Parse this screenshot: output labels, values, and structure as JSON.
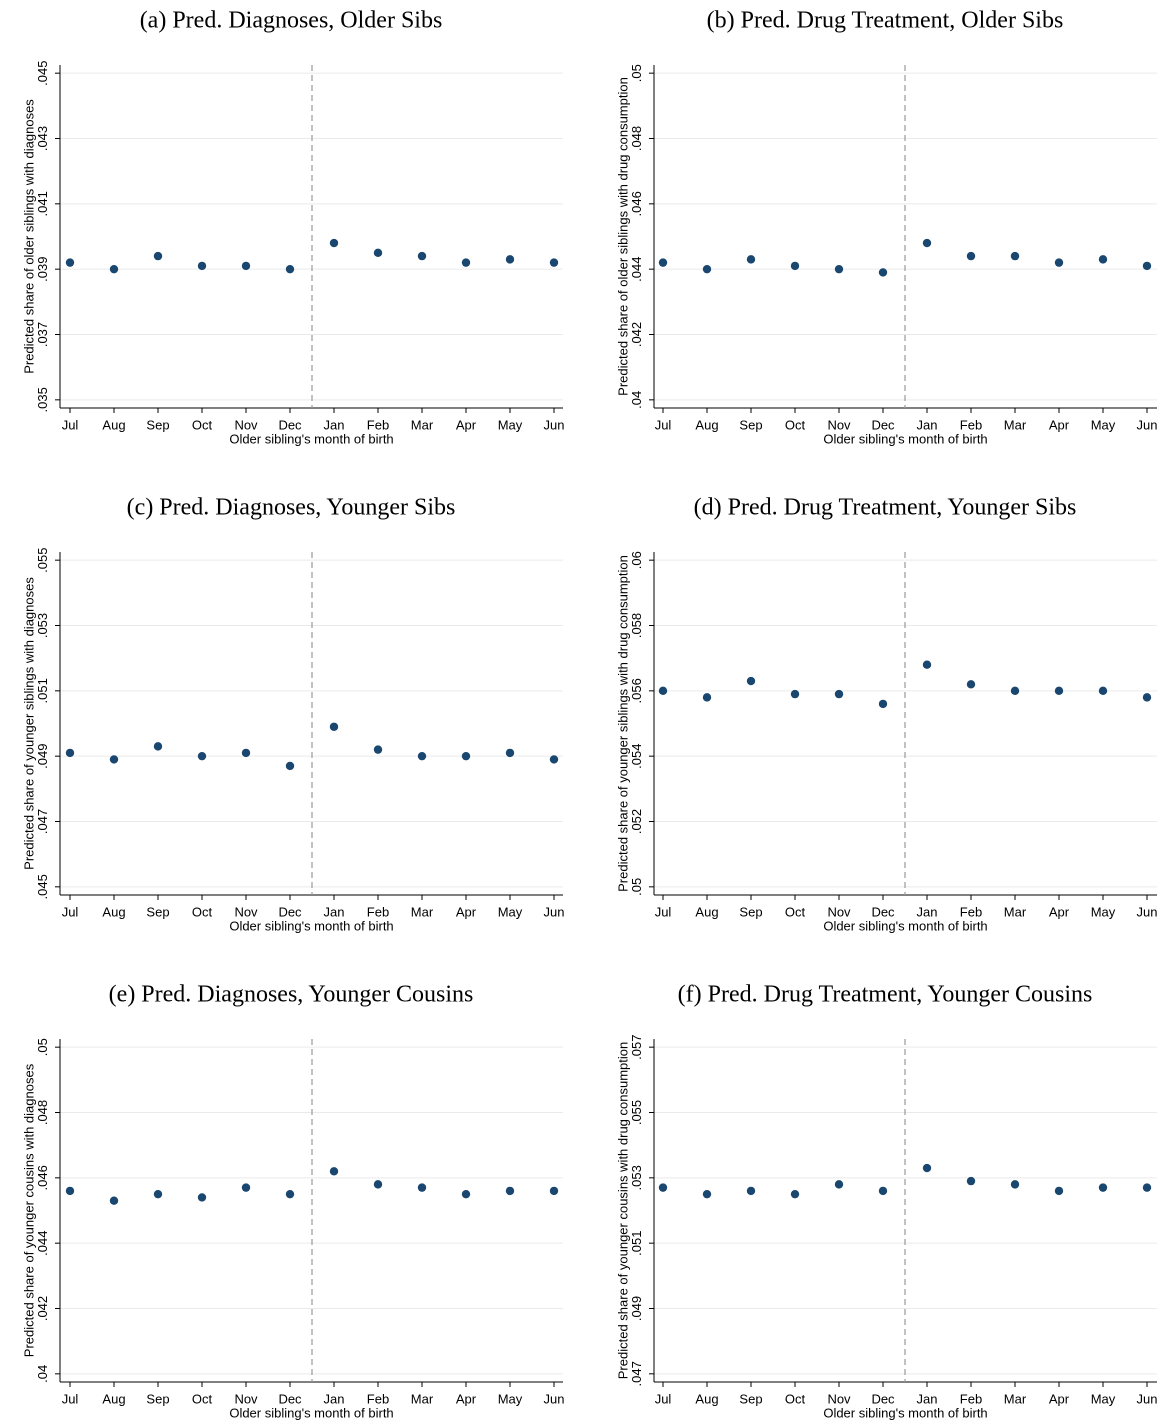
{
  "chart_data": [
    {
      "type": "scatter",
      "title": "(a) Pred. Diagnoses, Older Sibs",
      "x_label": "Older sibling's month of birth",
      "y_label": "Predicted share of older siblings with diagnoses",
      "categories": [
        "Jul",
        "Aug",
        "Sep",
        "Oct",
        "Nov",
        "Dec",
        "Jan",
        "Feb",
        "Mar",
        "Apr",
        "May",
        "Jun"
      ],
      "values": [
        0.0392,
        0.039,
        0.0394,
        0.0391,
        0.0391,
        0.039,
        0.0398,
        0.0395,
        0.0394,
        0.0392,
        0.0393,
        0.0392
      ],
      "color": "#1a476f",
      "grid": true,
      "ylim": [
        0.03475,
        0.04525
      ],
      "yticks": [
        {
          "value": 0.035,
          "label": ".035"
        },
        {
          "value": 0.037,
          "label": ".037"
        },
        {
          "value": 0.039,
          "label": ".039"
        },
        {
          "value": 0.041,
          "label": ".041"
        },
        {
          "value": 0.043,
          "label": ".043"
        },
        {
          "value": 0.045,
          "label": ".045"
        }
      ]
    },
    {
      "type": "scatter",
      "title": "(b) Pred. Drug Treatment, Older Sibs",
      "x_label": "Older sibling's month of birth",
      "y_label": "Predicted share of older siblings with drug consumption",
      "categories": [
        "Jul",
        "Aug",
        "Sep",
        "Oct",
        "Nov",
        "Dec",
        "Jan",
        "Feb",
        "Mar",
        "Apr",
        "May",
        "Jun"
      ],
      "values": [
        0.0442,
        0.044,
        0.0443,
        0.0441,
        0.044,
        0.0439,
        0.0448,
        0.0444,
        0.0444,
        0.0442,
        0.0443,
        0.0441
      ],
      "color": "#1a476f",
      "grid": true,
      "ylim": [
        0.03975,
        0.05025
      ],
      "yticks": [
        {
          "value": 0.04,
          "label": ".04"
        },
        {
          "value": 0.042,
          "label": ".042"
        },
        {
          "value": 0.044,
          "label": ".044"
        },
        {
          "value": 0.046,
          "label": ".046"
        },
        {
          "value": 0.048,
          "label": ".048"
        },
        {
          "value": 0.05,
          "label": ".05"
        }
      ]
    },
    {
      "type": "scatter",
      "title": "(c) Pred. Diagnoses, Younger Sibs",
      "x_label": "Older sibling's month of birth",
      "y_label": "Predicted share of younger siblings with diagnoses",
      "categories": [
        "Jul",
        "Aug",
        "Sep",
        "Oct",
        "Nov",
        "Dec",
        "Jan",
        "Feb",
        "Mar",
        "Apr",
        "May",
        "Jun"
      ],
      "values": [
        0.0491,
        0.0489,
        0.0493,
        0.049,
        0.0491,
        0.0487,
        0.0499,
        0.0492,
        0.049,
        0.049,
        0.0491,
        0.0489
      ],
      "color": "#1a476f",
      "grid": true,
      "ylim": [
        0.04475,
        0.05525
      ],
      "yticks": [
        {
          "value": 0.045,
          "label": ".045"
        },
        {
          "value": 0.047,
          "label": ".047"
        },
        {
          "value": 0.049,
          "label": ".049"
        },
        {
          "value": 0.051,
          "label": ".051"
        },
        {
          "value": 0.053,
          "label": ".053"
        },
        {
          "value": 0.055,
          "label": ".055"
        }
      ]
    },
    {
      "type": "scatter",
      "title": "(d) Pred. Drug Treatment, Younger Sibs",
      "x_label": "Older sibling's month of birth",
      "y_label": "Predicted share of younger siblings with drug consumption",
      "categories": [
        "Jul",
        "Aug",
        "Sep",
        "Oct",
        "Nov",
        "Dec",
        "Jan",
        "Feb",
        "Mar",
        "Apr",
        "May",
        "Jun"
      ],
      "values": [
        0.056,
        0.0558,
        0.0563,
        0.0559,
        0.0559,
        0.0556,
        0.0568,
        0.0562,
        0.056,
        0.056,
        0.056,
        0.0558
      ],
      "color": "#1a476f",
      "grid": true,
      "ylim": [
        0.04975,
        0.06025
      ],
      "yticks": [
        {
          "value": 0.05,
          "label": ".05"
        },
        {
          "value": 0.052,
          "label": ".052"
        },
        {
          "value": 0.054,
          "label": ".054"
        },
        {
          "value": 0.056,
          "label": ".056"
        },
        {
          "value": 0.058,
          "label": ".058"
        },
        {
          "value": 0.06,
          "label": ".06"
        }
      ]
    },
    {
      "type": "scatter",
      "title": "(e) Pred. Diagnoses, Younger Cousins",
      "x_label": "Older sibling's month of birth",
      "y_label": "Predicted share of younger cousins with diagnoses",
      "categories": [
        "Jul",
        "Aug",
        "Sep",
        "Oct",
        "Nov",
        "Dec",
        "Jan",
        "Feb",
        "Mar",
        "Apr",
        "May",
        "Jun"
      ],
      "values": [
        0.0456,
        0.0453,
        0.0455,
        0.0454,
        0.0457,
        0.0455,
        0.0462,
        0.0458,
        0.0457,
        0.0455,
        0.0456,
        0.0456
      ],
      "color": "#1a476f",
      "grid": true,
      "ylim": [
        0.03975,
        0.05025
      ],
      "yticks": [
        {
          "value": 0.04,
          "label": ".04"
        },
        {
          "value": 0.042,
          "label": ".042"
        },
        {
          "value": 0.044,
          "label": ".044"
        },
        {
          "value": 0.046,
          "label": ".046"
        },
        {
          "value": 0.048,
          "label": ".048"
        },
        {
          "value": 0.05,
          "label": ".05"
        }
      ]
    },
    {
      "type": "scatter",
      "title": "(f) Pred. Drug Treatment, Younger Cousins",
      "x_label": "Older sibling's month of birth",
      "y_label": "Predicted share of younger cousins with drug consumption",
      "categories": [
        "Jul",
        "Aug",
        "Sep",
        "Oct",
        "Nov",
        "Dec",
        "Jan",
        "Feb",
        "Mar",
        "Apr",
        "May",
        "Jun"
      ],
      "values": [
        0.0527,
        0.0525,
        0.0526,
        0.0525,
        0.0528,
        0.0526,
        0.0533,
        0.0529,
        0.0528,
        0.0526,
        0.0527,
        0.0527
      ],
      "color": "#1a476f",
      "grid": true,
      "ylim": [
        0.04675,
        0.05725
      ],
      "yticks": [
        {
          "value": 0.047,
          "label": ".047"
        },
        {
          "value": 0.049,
          "label": ".049"
        },
        {
          "value": 0.051,
          "label": ".051"
        },
        {
          "value": 0.053,
          "label": ".053"
        },
        {
          "value": 0.055,
          "label": ".055"
        },
        {
          "value": 0.057,
          "label": ".057"
        }
      ]
    }
  ]
}
